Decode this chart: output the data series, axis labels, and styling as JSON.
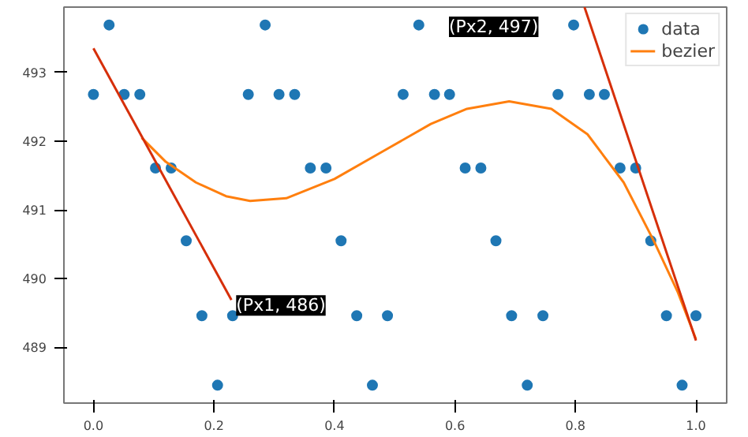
{
  "chart_data": {
    "type": "line",
    "xlim": [
      -0.049,
      1.051
    ],
    "ylim": [
      488.19,
      493.95
    ],
    "xticks": [
      {
        "value": 0,
        "label": "0.0"
      },
      {
        "value": 0.2,
        "label": "0.2"
      },
      {
        "value": 0.4,
        "label": "0.4"
      },
      {
        "value": 0.6,
        "label": "0.6"
      },
      {
        "value": 0.8,
        "label": "0.8"
      },
      {
        "value": 1,
        "label": "1.0"
      }
    ],
    "yticks": [
      489,
      490,
      491,
      492,
      493
    ],
    "grid": false,
    "legend": "top right",
    "series": [
      {
        "name": "data",
        "type": "scatter",
        "marker": "circle",
        "color": "#1f77b4",
        "x": [
          0,
          0.026,
          0.051,
          0.077,
          0.103,
          0.129,
          0.154,
          0.18,
          0.206,
          0.231,
          0.257,
          0.285,
          0.308,
          0.334,
          0.36,
          0.386,
          0.411,
          0.437,
          0.463,
          0.488,
          0.514,
          0.54,
          0.566,
          0.591,
          0.617,
          0.643,
          0.668,
          0.694,
          0.72,
          0.746,
          0.771,
          0.797,
          0.823,
          0.848,
          0.874,
          0.9,
          0.925,
          0.951,
          0.977,
          1.0
        ],
        "values": [
          492.68,
          493.69,
          492.68,
          492.68,
          491.61,
          491.61,
          490.55,
          489.46,
          488.45,
          489.46,
          492.68,
          493.69,
          492.68,
          492.68,
          491.61,
          491.61,
          490.55,
          489.46,
          488.45,
          489.46,
          492.68,
          493.69,
          492.68,
          492.68,
          491.61,
          491.61,
          490.55,
          489.46,
          488.45,
          489.46,
          492.68,
          493.69,
          492.68,
          492.68,
          491.61,
          491.61,
          490.55,
          489.46,
          488.45,
          489.46
        ]
      },
      {
        "name": "bezier",
        "color": "#ff7f0e",
        "x": [
          0.08,
          0.12,
          0.17,
          0.22,
          0.26,
          0.32,
          0.4,
          0.48,
          0.56,
          0.62,
          0.69,
          0.76,
          0.82,
          0.88,
          0.93,
          0.97,
          1.0
        ],
        "values": [
          492.05,
          491.7,
          491.4,
          491.2,
          491.13,
          491.17,
          491.45,
          491.85,
          492.25,
          492.47,
          492.58,
          492.47,
          492.1,
          491.4,
          490.55,
          489.8,
          489.12
        ]
      },
      {
        "color": "#d62f0a",
        "x": [
          0.0,
          0.229
        ],
        "values": [
          493.35,
          489.69
        ]
      },
      {
        "color": "#d62f0a",
        "x": [
          0.815,
          1.0
        ],
        "values": [
          493.95,
          489.1
        ]
      }
    ],
    "annotations": [
      {
        "text": "(Px1, 486)",
        "x": 0.229,
        "y": 489.69
      },
      "(Px2, 497)"
    ]
  }
}
